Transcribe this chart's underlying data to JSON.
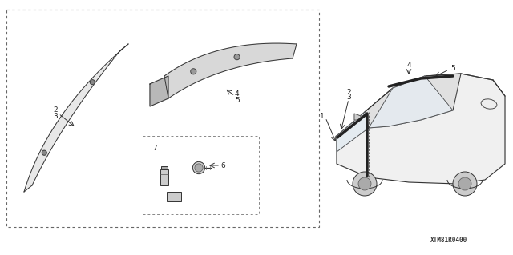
{
  "background_color": "#ffffff",
  "title": "",
  "watermark": "XTM81R0400",
  "part_numbers": [
    1,
    2,
    3,
    4,
    5,
    6,
    7
  ],
  "fig_width": 6.4,
  "fig_height": 3.19,
  "dpi": 100
}
